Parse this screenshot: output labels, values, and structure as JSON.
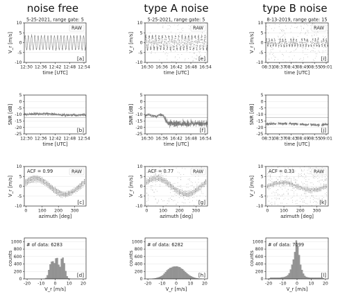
{
  "columns": [
    "noise free",
    "type A noise",
    "type B noise"
  ],
  "colors": {
    "data": "#7a7a7a",
    "bar": "#9a9a9a",
    "axis": "#222222",
    "ref": "#aaaaaa"
  },
  "chart_data": [
    {
      "id": "a",
      "type": "line",
      "panel_label": "[a]",
      "subtitle": "5-25-2021, range gate: 5",
      "legend": "RAW",
      "xlabel": "time  [UTC]",
      "ylabel": "V_r  [m/s]",
      "x_ticks": [
        "12:30",
        "12:36",
        "12:42",
        "12:48",
        "12:54"
      ],
      "ylim": [
        -10,
        10
      ],
      "y_ticks": [
        -10,
        -5,
        0,
        5,
        10
      ],
      "grid": true,
      "pattern": {
        "kind": "oscillation",
        "amplitude": 3.5,
        "cycles": 19,
        "noise": "low"
      }
    },
    {
      "id": "e",
      "type": "scatter",
      "panel_label": "[e]",
      "subtitle": "5-25-2021, range gate: 5",
      "legend": "RAW",
      "xlabel": "time  [UTC]",
      "ylabel": "V_r  [m/s]",
      "x_ticks": [
        "16:30",
        "16:36",
        "16:42",
        "16:48",
        "16:54"
      ],
      "ylim": [
        -10,
        10
      ],
      "y_ticks": [
        -10,
        -5,
        0,
        5,
        10
      ],
      "grid": true,
      "pattern": {
        "kind": "oscillation",
        "amplitude": 3.5,
        "cycles": 19,
        "noise": "type A, increasing after 16:38"
      }
    },
    {
      "id": "i",
      "type": "scatter",
      "panel_label": "[i]",
      "subtitle": "8-13-2019, range gate: 15",
      "legend": "RAW",
      "xlabel": "time  [UTC]",
      "ylabel": "V_r  [m/s]",
      "x_ticks": [
        "08:31",
        "08:37",
        "08:43",
        "08:49",
        "08:55",
        "09:01"
      ],
      "ylim": [
        -10,
        10
      ],
      "y_ticks": [
        -10,
        -5,
        0,
        5,
        10
      ],
      "grid": true,
      "pattern": {
        "kind": "oscillation",
        "amplitude": 1.8,
        "cycles": 23,
        "noise": "type B, uniform",
        "gaps_minutes_after_start": [
          5.5,
          10.7,
          15.9,
          21.1,
          26.3
        ]
      }
    },
    {
      "id": "b",
      "type": "line",
      "panel_label": "[b]",
      "xlabel": "time  [UTC]",
      "ylabel": "SNR  [dB]",
      "x_ticks": [
        "12:30",
        "12:36",
        "12:42",
        "12:48",
        "12:54"
      ],
      "ylim": [
        -25,
        5
      ],
      "y_ticks": [
        -25,
        -20,
        -15,
        -10,
        -5,
        0,
        5
      ],
      "grid": true,
      "reference_line_db": -12.5,
      "pattern": {
        "kind": "level",
        "level_db": -10,
        "drop_db": 0
      }
    },
    {
      "id": "f",
      "type": "line",
      "panel_label": "[f]",
      "xlabel": "time  [UTC]",
      "ylabel": "SNR  [dB]",
      "x_ticks": [
        "16:30",
        "16:36",
        "16:42",
        "16:48",
        "16:54"
      ],
      "ylim": [
        -25,
        5
      ],
      "y_ticks": [
        -25,
        -20,
        -15,
        -10,
        -5,
        0,
        5
      ],
      "grid": true,
      "reference_line_db": -12.5,
      "pattern": {
        "kind": "step",
        "level_db": -11,
        "after_db": -17,
        "step_minutes_after_start": 8
      }
    },
    {
      "id": "j",
      "type": "line",
      "panel_label": "[j]",
      "xlabel": "time  [UTC]",
      "ylabel": "SNR  [dB]",
      "x_ticks": [
        "08:31",
        "08:37",
        "08:43",
        "08:49",
        "08:55",
        "09:01"
      ],
      "ylim": [
        -25,
        5
      ],
      "y_ticks": [
        -25,
        -20,
        -15,
        -10,
        -5,
        0,
        5
      ],
      "grid": true,
      "reference_line_db": -12.5,
      "pattern": {
        "kind": "level",
        "level_db": -17.5,
        "gaps_minutes_after_start": [
          5.5,
          10.7,
          15.9,
          21.1,
          26.3
        ]
      }
    },
    {
      "id": "c",
      "type": "scatter",
      "panel_label": "[c]",
      "legend": "RAW",
      "acf_label": "ACF = 0.99",
      "xlabel": "azimuth  [deg]",
      "ylabel": "V_r  [m/s]",
      "x_ticks": [
        0,
        100,
        200,
        300
      ],
      "xlim": [
        -10,
        370
      ],
      "ylim": [
        -10,
        10
      ],
      "y_ticks": [
        -10,
        -5,
        0,
        5,
        10
      ],
      "grid": true,
      "pattern": {
        "kind": "sinusoid",
        "amplitude": 4,
        "peak_deg": 60,
        "noise": "low"
      }
    },
    {
      "id": "g",
      "type": "scatter",
      "panel_label": "[g]",
      "legend": "RAW",
      "acf_label": "ACF = 0.77",
      "xlabel": "azimuth  [deg]",
      "ylabel": "V_r  [m/s]",
      "x_ticks": [
        0,
        100,
        200,
        300
      ],
      "xlim": [
        -10,
        370
      ],
      "ylim": [
        -10,
        10
      ],
      "y_ticks": [
        -10,
        -5,
        0,
        5,
        10
      ],
      "grid": true,
      "pattern": {
        "kind": "sinusoid",
        "amplitude": 4,
        "peak_deg": 60,
        "noise": "type A"
      }
    },
    {
      "id": "k",
      "type": "scatter",
      "panel_label": "[k]",
      "legend": "RAW",
      "acf_label": "ACF = 0.33",
      "xlabel": "azimuth  [deg]",
      "ylabel": "V_r  [m/s]",
      "x_ticks": [
        0,
        100,
        200,
        300
      ],
      "xlim": [
        -10,
        370
      ],
      "ylim": [
        -10,
        10
      ],
      "y_ticks": [
        -10,
        -5,
        0,
        5,
        10
      ],
      "grid": true,
      "pattern": {
        "kind": "sinusoid",
        "amplitude": 2,
        "peak_deg": 90,
        "noise": "type B"
      }
    },
    {
      "id": "d",
      "type": "bar",
      "panel_label": "[d]",
      "count_label": "# of data: 6283",
      "xlabel": "V_r  [m/s]",
      "ylabel": "counts",
      "x_ticks": [
        -20,
        -10,
        0,
        10,
        20
      ],
      "xlim": [
        -22,
        22
      ],
      "ylim": [
        0,
        1100
      ],
      "y_ticks": [
        0,
        200,
        400,
        600,
        800,
        1000
      ],
      "grid": true,
      "bin_start": -21,
      "bin_width": 1,
      "values": [
        0,
        0,
        0,
        0,
        0,
        0,
        0,
        0,
        0,
        0,
        0,
        0,
        0,
        5,
        25,
        95,
        240,
        390,
        460,
        470,
        420,
        550,
        560,
        380,
        320,
        540,
        570,
        420,
        210,
        70,
        18,
        5,
        0,
        0,
        0,
        0,
        0,
        0,
        0,
        0,
        0,
        0
      ]
    },
    {
      "id": "h",
      "type": "bar",
      "panel_label": "[h]",
      "count_label": "# of data: 6282",
      "xlabel": "V_r  [m/s]",
      "ylabel": "counts",
      "x_ticks": [
        -20,
        -10,
        0,
        10,
        20
      ],
      "xlim": [
        -22,
        22
      ],
      "ylim": [
        0,
        1100
      ],
      "y_ticks": [
        0,
        200,
        400,
        600,
        800,
        1000
      ],
      "grid": true,
      "bin_start": -21,
      "bin_width": 1,
      "values": [
        0,
        0,
        0,
        0,
        3,
        10,
        18,
        28,
        40,
        55,
        75,
        100,
        140,
        180,
        230,
        260,
        290,
        300,
        320,
        330,
        330,
        335,
        320,
        310,
        280,
        260,
        220,
        180,
        150,
        120,
        90,
        70,
        50,
        35,
        25,
        15,
        10,
        5,
        3,
        0,
        0,
        0
      ]
    },
    {
      "id": "l",
      "type": "bar",
      "panel_label": "[l]",
      "count_label": "# of data: 7099",
      "xlabel": "V_r  [m/s]",
      "ylabel": "counts",
      "x_ticks": [
        -20,
        -10,
        0,
        10,
        20
      ],
      "xlim": [
        -22,
        22
      ],
      "ylim": [
        0,
        1100
      ],
      "y_ticks": [
        0,
        200,
        400,
        600,
        800,
        1000
      ],
      "grid": true,
      "bin_start": -21,
      "bin_width": 1,
      "values": [
        0,
        10,
        30,
        30,
        30,
        30,
        30,
        30,
        30,
        35,
        40,
        45,
        55,
        70,
        100,
        150,
        250,
        380,
        520,
        720,
        1030,
        880,
        640,
        380,
        240,
        140,
        80,
        50,
        40,
        35,
        30,
        30,
        30,
        30,
        30,
        30,
        30,
        30,
        30,
        20,
        0,
        0
      ]
    }
  ]
}
